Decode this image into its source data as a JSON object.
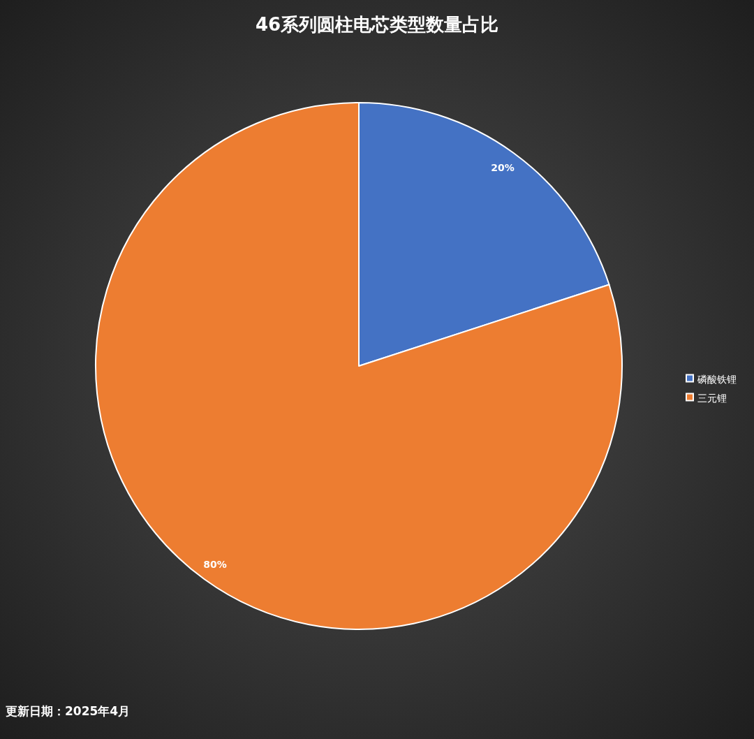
{
  "chart_data": {
    "type": "pie",
    "title": "46系列圆柱电芯类型数量占比",
    "categories": [
      "磷酸铁锂",
      "三元锂"
    ],
    "values": [
      20,
      80
    ],
    "colors": [
      "#4472c4",
      "#ed7d31"
    ],
    "value_labels": [
      "20%",
      "80%"
    ],
    "legend": "right",
    "annotations": [
      "更新日期：2025年4月"
    ]
  }
}
